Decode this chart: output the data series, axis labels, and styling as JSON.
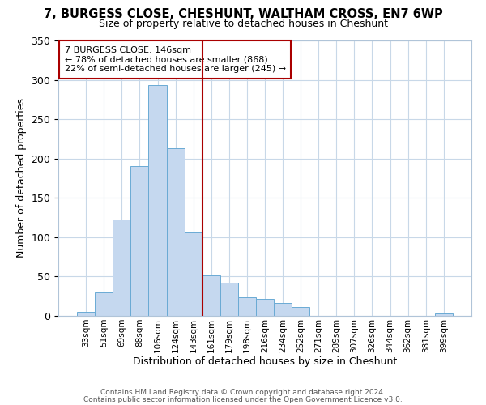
{
  "title": "7, BURGESS CLOSE, CHESHUNT, WALTHAM CROSS, EN7 6WP",
  "subtitle": "Size of property relative to detached houses in Cheshunt",
  "xlabel": "Distribution of detached houses by size in Cheshunt",
  "ylabel": "Number of detached properties",
  "bin_labels": [
    "33sqm",
    "51sqm",
    "69sqm",
    "88sqm",
    "106sqm",
    "124sqm",
    "143sqm",
    "161sqm",
    "179sqm",
    "198sqm",
    "216sqm",
    "234sqm",
    "252sqm",
    "271sqm",
    "289sqm",
    "307sqm",
    "326sqm",
    "344sqm",
    "362sqm",
    "381sqm",
    "399sqm"
  ],
  "bar_heights": [
    5,
    30,
    123,
    190,
    293,
    213,
    106,
    51,
    42,
    24,
    22,
    16,
    11,
    0,
    0,
    0,
    0,
    0,
    0,
    0,
    3
  ],
  "bar_color": "#c5d8ef",
  "bar_edge_color": "#6aaad4",
  "vline_color": "#aa0000",
  "annotation_title": "7 BURGESS CLOSE: 146sqm",
  "annotation_line1": "← 78% of detached houses are smaller (868)",
  "annotation_line2": "22% of semi-detached houses are larger (245) →",
  "annotation_box_color": "#ffffff",
  "annotation_box_edge": "#aa0000",
  "footer1": "Contains HM Land Registry data © Crown copyright and database right 2024.",
  "footer2": "Contains public sector information licensed under the Open Government Licence v3.0.",
  "ylim": [
    0,
    350
  ],
  "background_color": "#ffffff",
  "grid_color": "#c8d8e8"
}
